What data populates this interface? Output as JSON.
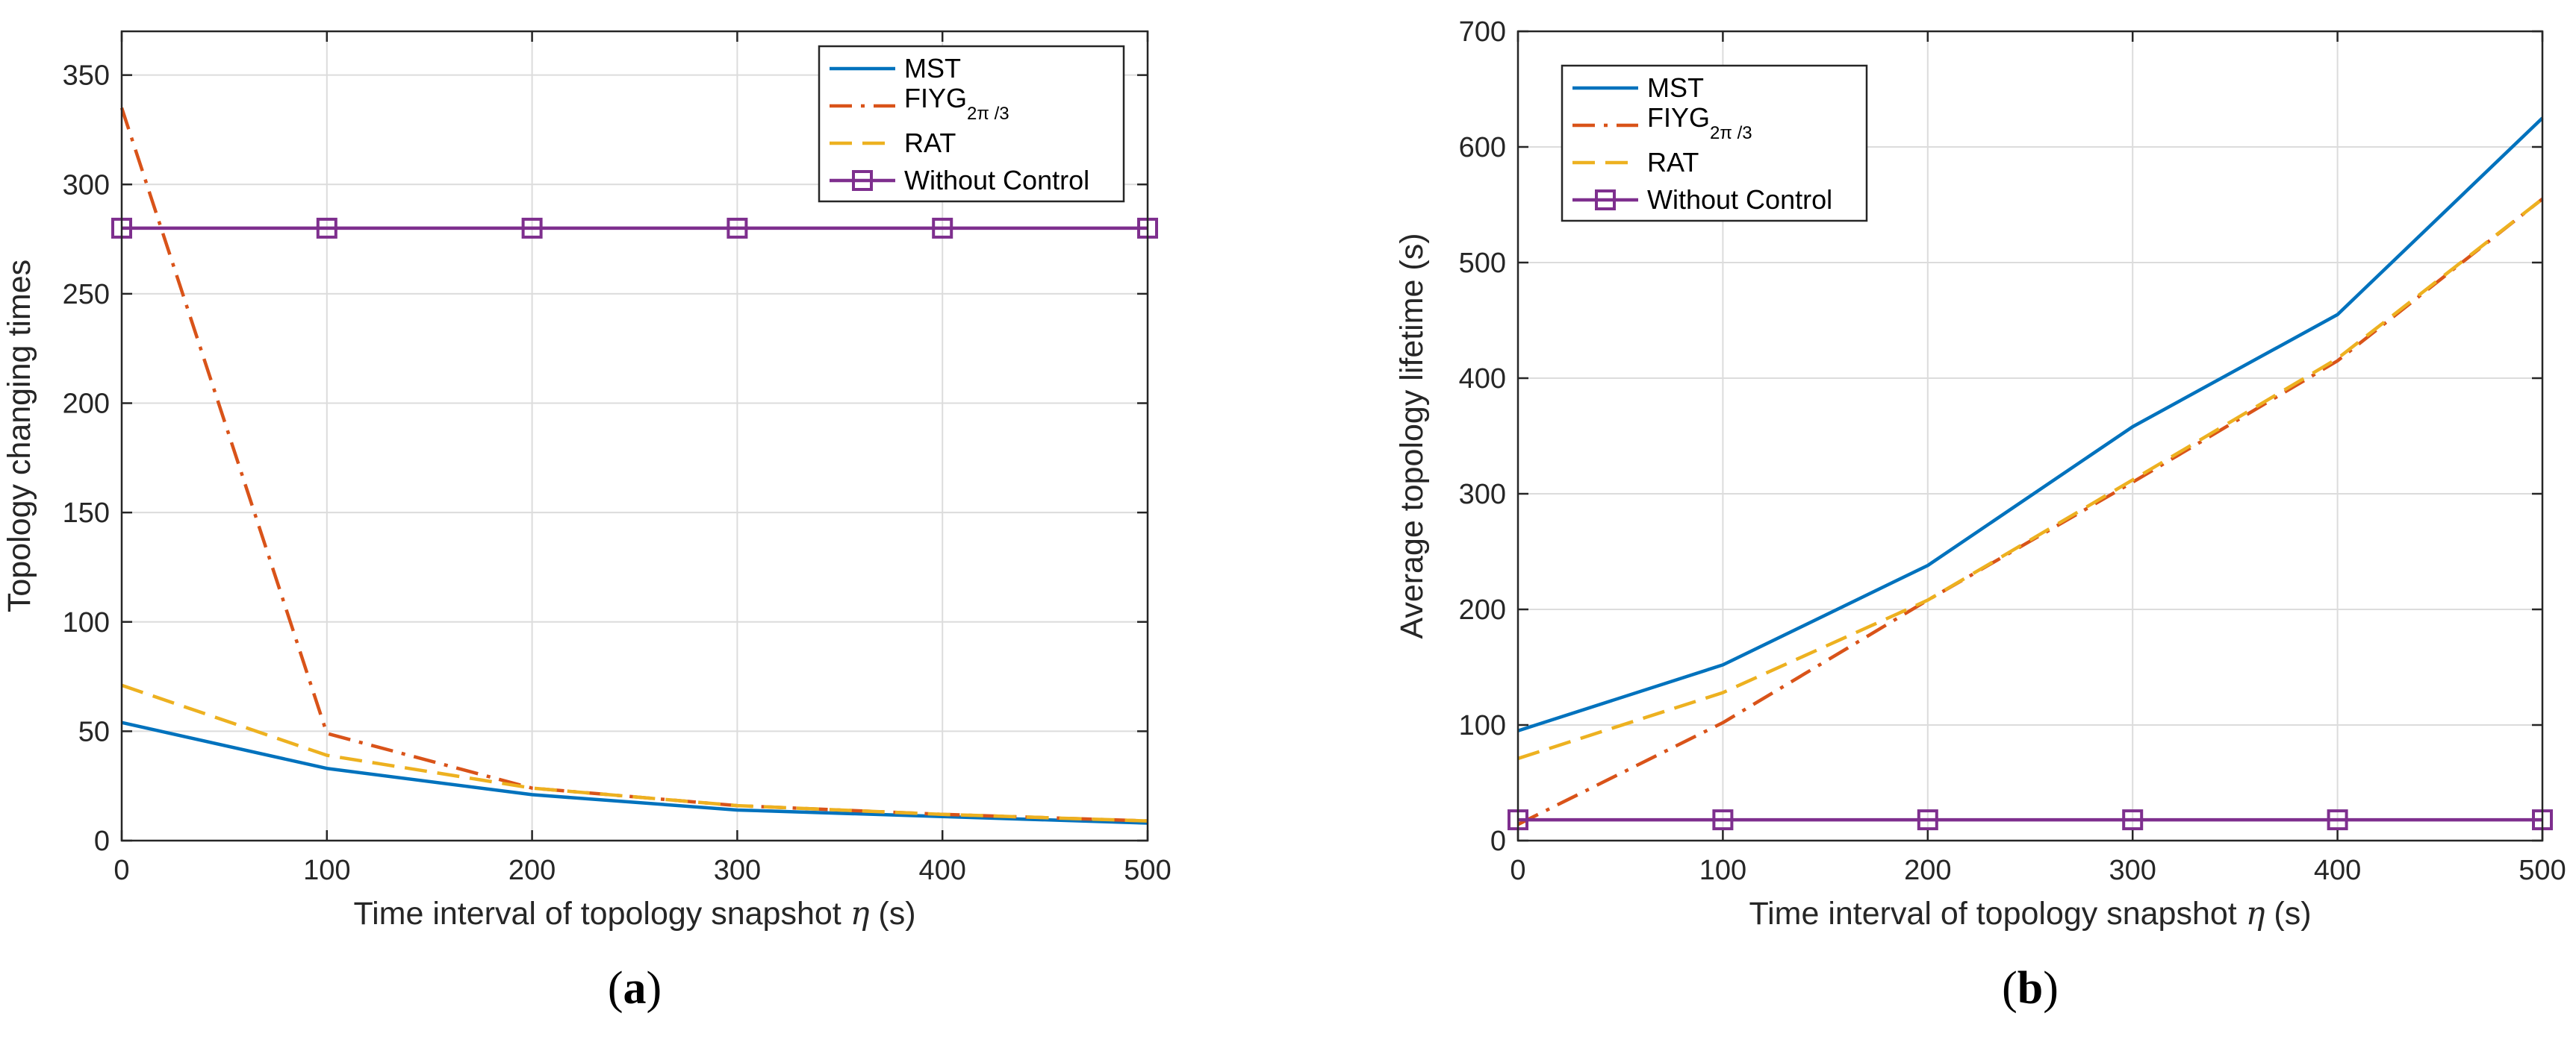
{
  "chart_data": [
    {
      "id": "a",
      "type": "line",
      "panel_label": {
        "open": "(",
        "letter": "a",
        "close": ")"
      },
      "xlabel": {
        "prefix": "Time interval of topology snapshot ",
        "symbol": "η",
        "suffix": " (s)"
      },
      "ylabel": "Topology changing times",
      "xlim": [
        0,
        500
      ],
      "ylim": [
        0,
        370
      ],
      "xticks": [
        0,
        100,
        200,
        300,
        400,
        500
      ],
      "yticks": [
        0,
        50,
        100,
        150,
        200,
        250,
        300,
        350
      ],
      "grid": true,
      "legend_position": "top-right",
      "x": [
        0,
        100,
        200,
        300,
        400,
        500
      ],
      "series": [
        {
          "name": "MST",
          "values": [
            54,
            33,
            21,
            14,
            11,
            8
          ],
          "color": "#0072BD",
          "dash": "solid",
          "marker": "none"
        },
        {
          "name": "FIYG",
          "sub": "2π /3",
          "values": [
            335,
            49,
            24,
            16,
            12,
            9
          ],
          "color": "#D95319",
          "dash": "dashdot",
          "marker": "none"
        },
        {
          "name": "RAT",
          "values": [
            71,
            39,
            24,
            16,
            12,
            9
          ],
          "color": "#EDB120",
          "dash": "dashed",
          "marker": "none"
        },
        {
          "name": "Without Control",
          "values": [
            280,
            280,
            280,
            280,
            280,
            280
          ],
          "color": "#7E2F8E",
          "dash": "solid",
          "marker": "square"
        }
      ]
    },
    {
      "id": "b",
      "type": "line",
      "panel_label": {
        "open": "(",
        "letter": "b",
        "close": ")"
      },
      "xlabel": {
        "prefix": "Time interval of topology snapshot ",
        "symbol": "η",
        "suffix": " (s)"
      },
      "ylabel": "Average topology lifetime (s)",
      "xlim": [
        0,
        500
      ],
      "ylim": [
        0,
        700
      ],
      "xticks": [
        0,
        100,
        200,
        300,
        400,
        500
      ],
      "yticks": [
        0,
        100,
        200,
        300,
        400,
        500,
        600,
        700
      ],
      "grid": true,
      "legend_position": "top-left",
      "x": [
        0,
        100,
        200,
        300,
        400,
        500
      ],
      "series": [
        {
          "name": "MST",
          "values": [
            95,
            152,
            238,
            358,
            455,
            625
          ],
          "color": "#0072BD",
          "dash": "solid",
          "marker": "none"
        },
        {
          "name": "FIYG",
          "sub": "2π /3",
          "values": [
            14,
            102,
            208,
            310,
            415,
            555
          ],
          "color": "#D95319",
          "dash": "dashdot",
          "marker": "none"
        },
        {
          "name": "RAT",
          "values": [
            71,
            128,
            208,
            312,
            417,
            555
          ],
          "color": "#EDB120",
          "dash": "dashed",
          "marker": "none"
        },
        {
          "name": "Without Control",
          "values": [
            18,
            18,
            18,
            18,
            18,
            18
          ],
          "color": "#7E2F8E",
          "dash": "solid",
          "marker": "square"
        }
      ]
    }
  ]
}
